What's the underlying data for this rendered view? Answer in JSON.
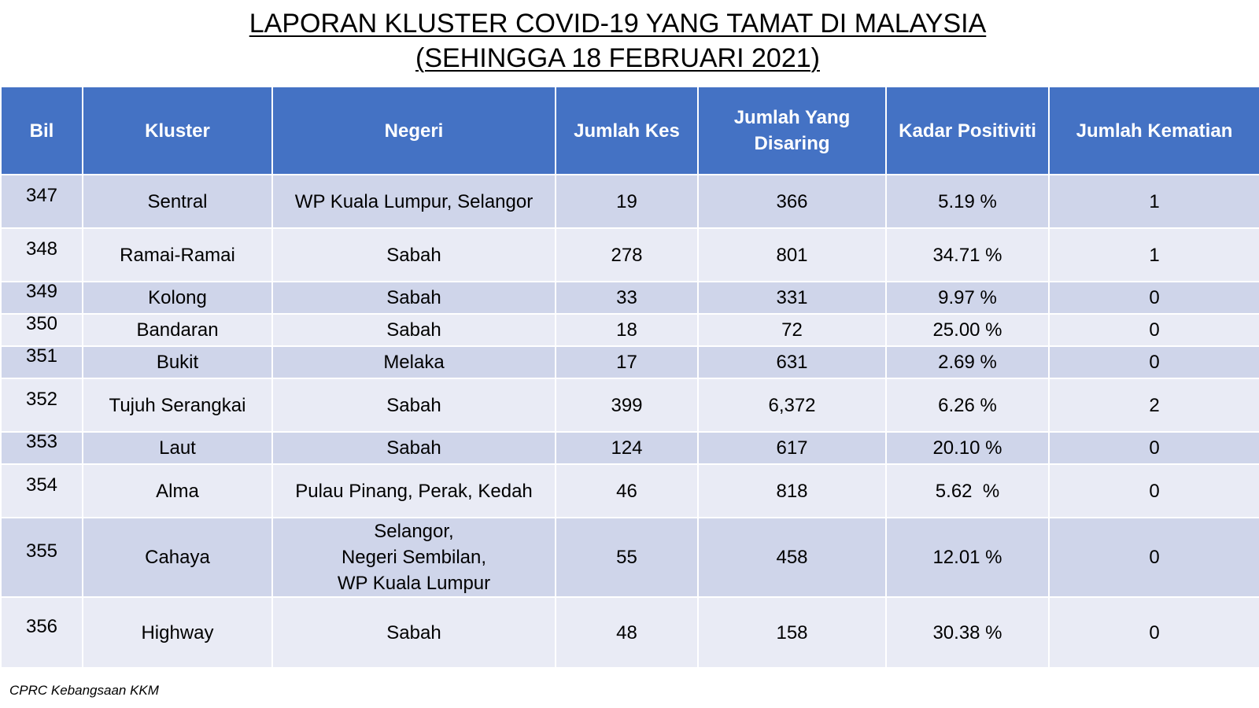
{
  "title": {
    "line1": "LAPORAN KLUSTER COVID-19 YANG TAMAT DI MALAYSIA",
    "line2": "(SEHINGGA 18 FEBRUARI 2021)"
  },
  "table": {
    "headers": {
      "bil": "Bil",
      "kluster": "Kluster",
      "negeri": "Negeri",
      "jumlah_kes": "Jumlah Kes",
      "jumlah_disaring_1": "Jumlah Yang",
      "jumlah_disaring_2": "Disaring",
      "kadar_positiviti": "Kadar Positiviti",
      "jumlah_kematian": "Jumlah Kematian"
    },
    "rows": [
      {
        "bil": "347",
        "kluster": "Sentral",
        "negeri": [
          "WP Kuala Lumpur, Selangor"
        ],
        "jumlah_kes": "19",
        "jumlah_disaring": "366",
        "kadar_positiviti": "5.19 %",
        "jumlah_kematian": "1"
      },
      {
        "bil": "348",
        "kluster": "Ramai-Ramai",
        "negeri": [
          "Sabah"
        ],
        "jumlah_kes": "278",
        "jumlah_disaring": "801",
        "kadar_positiviti": "34.71 %",
        "jumlah_kematian": "1"
      },
      {
        "bil": "349",
        "kluster": "Kolong",
        "negeri": [
          "Sabah"
        ],
        "jumlah_kes": "33",
        "jumlah_disaring": "331",
        "kadar_positiviti": "9.97 %",
        "jumlah_kematian": "0"
      },
      {
        "bil": "350",
        "kluster": "Bandaran",
        "negeri": [
          "Sabah"
        ],
        "jumlah_kes": "18",
        "jumlah_disaring": "72",
        "kadar_positiviti": "25.00 %",
        "jumlah_kematian": "0"
      },
      {
        "bil": "351",
        "kluster": "Bukit",
        "negeri": [
          "Melaka"
        ],
        "jumlah_kes": "17",
        "jumlah_disaring": "631",
        "kadar_positiviti": "2.69 %",
        "jumlah_kematian": "0"
      },
      {
        "bil": "352",
        "kluster": "Tujuh Serangkai",
        "negeri": [
          "Sabah"
        ],
        "jumlah_kes": "399",
        "jumlah_disaring": "6,372",
        "kadar_positiviti": "6.26 %",
        "jumlah_kematian": "2"
      },
      {
        "bil": "353",
        "kluster": "Laut",
        "negeri": [
          "Sabah"
        ],
        "jumlah_kes": "124",
        "jumlah_disaring": "617",
        "kadar_positiviti": "20.10 %",
        "jumlah_kematian": "0"
      },
      {
        "bil": "354",
        "kluster": "Alma",
        "negeri": [
          "Pulau Pinang, Perak, Kedah"
        ],
        "jumlah_kes": "46",
        "jumlah_disaring": "818",
        "kadar_positiviti": "5.62  %",
        "jumlah_kematian": "0"
      },
      {
        "bil": "355",
        "kluster": "Cahaya",
        "negeri": [
          "Selangor,",
          "Negeri Sembilan,",
          "WP Kuala Lumpur"
        ],
        "jumlah_kes": "55",
        "jumlah_disaring": "458",
        "kadar_positiviti": "12.01 %",
        "jumlah_kematian": "0"
      },
      {
        "bil": "356",
        "kluster": "Highway",
        "negeri": [
          "Sabah"
        ],
        "jumlah_kes": "48",
        "jumlah_disaring": "158",
        "kadar_positiviti": "30.38 %",
        "jumlah_kematian": "0"
      }
    ]
  },
  "footer": "CPRC Kebangsaan KKM",
  "colors": {
    "header_bg": "#4472c4",
    "row_dark": "#cfd5ea",
    "row_light": "#e9ebf5"
  }
}
